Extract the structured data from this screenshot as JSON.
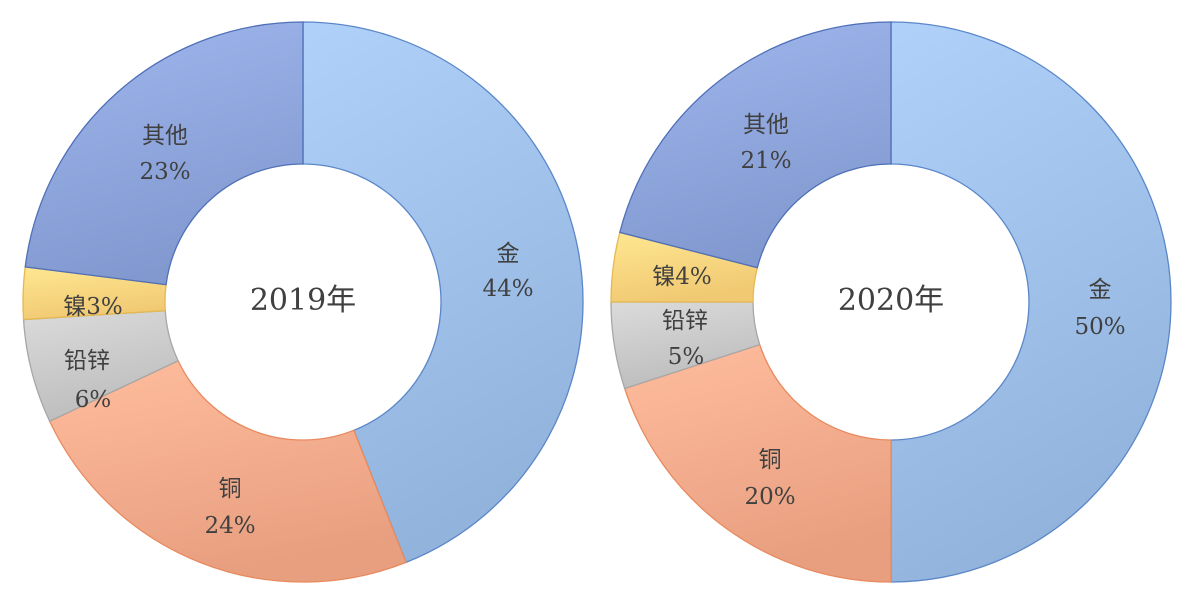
{
  "chart_data": [
    {
      "type": "pie",
      "title": "2019年",
      "slices": [
        {
          "name": "金",
          "value": 44,
          "value_label": "44%",
          "color": "#9dbfe8"
        },
        {
          "name": "铜",
          "value": 24,
          "value_label": "24%",
          "color": "#f4ab8c"
        },
        {
          "name": "铅锌",
          "value": 6,
          "value_label": "6%",
          "color": "#c9c9c9"
        },
        {
          "name": "镍",
          "value": 3,
          "value_label": "3%",
          "color": "#fdd57f"
        },
        {
          "name": "其他",
          "value": 23,
          "value_label": "23%",
          "color": "#8ea5dc"
        }
      ]
    },
    {
      "type": "pie",
      "title": "2020年",
      "slices": [
        {
          "name": "金",
          "value": 50,
          "value_label": "50%",
          "color": "#9dbfe8"
        },
        {
          "name": "铜",
          "value": 20,
          "value_label": "20%",
          "color": "#f4ab8c"
        },
        {
          "name": "铅锌",
          "value": 5,
          "value_label": "5%",
          "color": "#c9c9c9"
        },
        {
          "name": "镍",
          "value": 4,
          "value_label": "4%",
          "color": "#fdd57f"
        },
        {
          "name": "其他",
          "value": 21,
          "value_label": "21%",
          "color": "#8ea5dc"
        }
      ]
    }
  ]
}
